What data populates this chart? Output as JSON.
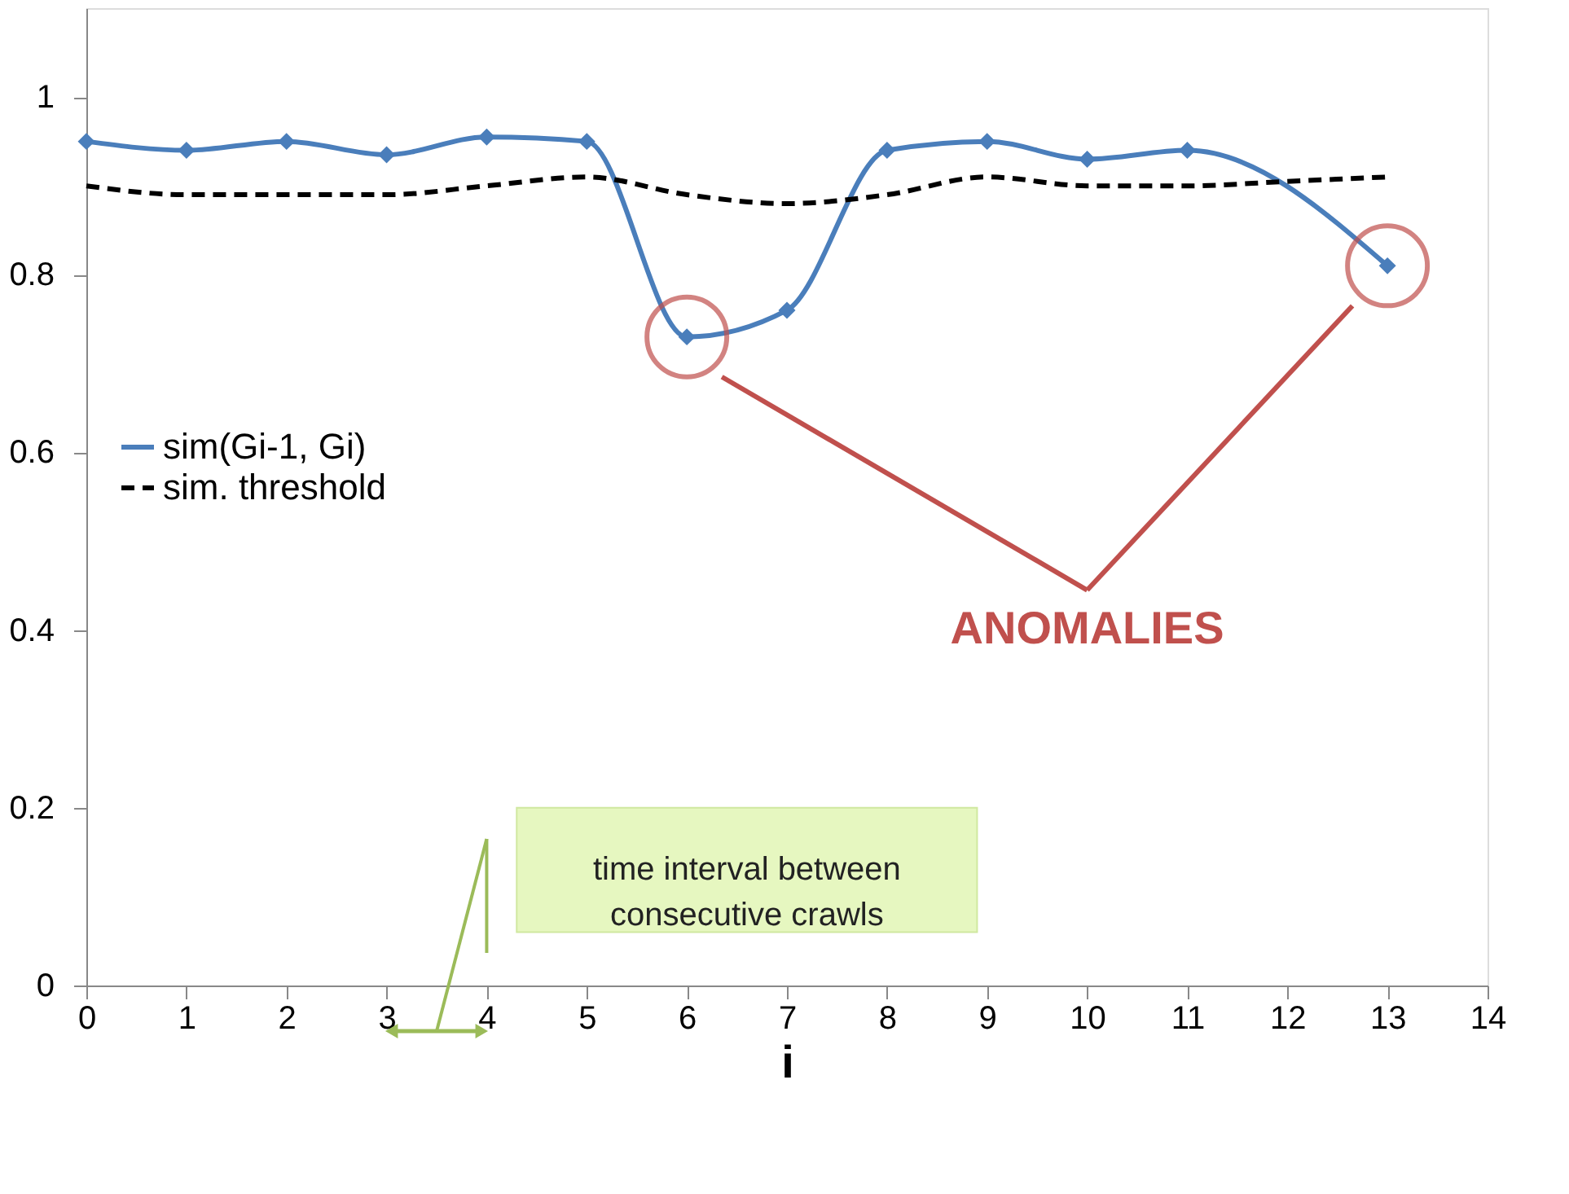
{
  "chart_data": {
    "type": "line",
    "xlabel": "i",
    "xlim": [
      0,
      14
    ],
    "xticks": [
      0,
      1,
      2,
      3,
      4,
      5,
      6,
      7,
      8,
      9,
      10,
      11,
      12,
      13,
      14
    ],
    "ylim": [
      0,
      1.1
    ],
    "yticks": [
      0,
      0.2,
      0.4,
      0.6,
      0.8,
      1
    ],
    "grid": false,
    "legend": "left",
    "series": [
      {
        "name": "sim(Gi-1, Gi)",
        "color": "#4a7ebb",
        "marker": "diamond",
        "line_style": "solid",
        "x": [
          0,
          1,
          2,
          3,
          4,
          5,
          6,
          7,
          8,
          9,
          10,
          11,
          13
        ],
        "values": [
          0.95,
          0.94,
          0.95,
          0.935,
          0.955,
          0.95,
          0.73,
          0.76,
          0.94,
          0.95,
          0.93,
          0.94,
          0.81
        ]
      },
      {
        "name": "sim. threshold",
        "color": "#000000",
        "marker": "none",
        "line_style": "dashed",
        "x": [
          0,
          1,
          2,
          3,
          4,
          5,
          6,
          7,
          8,
          9,
          10,
          11,
          12,
          13
        ],
        "values": [
          0.9,
          0.89,
          0.89,
          0.89,
          0.9,
          0.91,
          0.89,
          0.88,
          0.89,
          0.91,
          0.9,
          0.9,
          0.905,
          0.91
        ]
      }
    ],
    "annotations": [
      "ANOMALIES",
      "time interval between consecutive crawls"
    ]
  }
}
